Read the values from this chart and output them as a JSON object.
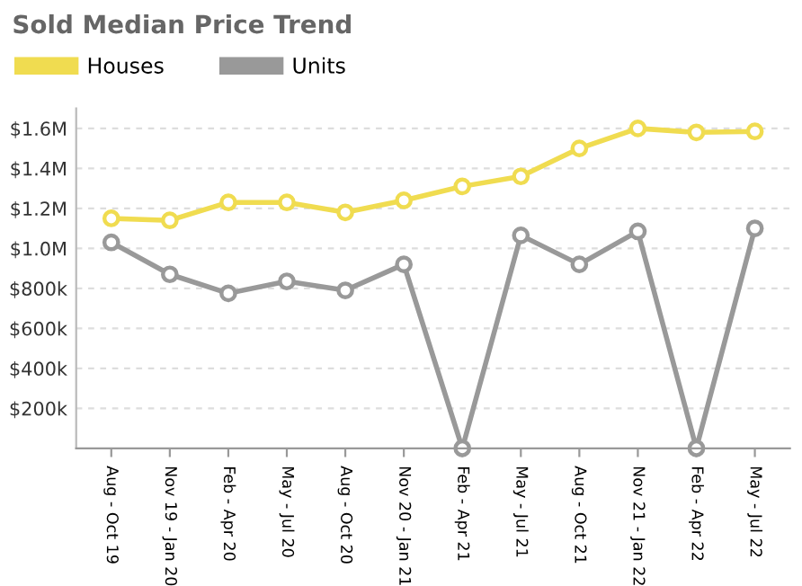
{
  "chart_data": {
    "type": "line",
    "title": "Sold Median Price Trend",
    "categories": [
      "Aug - Oct 19",
      "Nov 19 - Jan 20",
      "Feb - Apr 20",
      "May - Jul 20",
      "Aug - Oct 20",
      "Nov 20 - Jan 21",
      "Feb - Apr 21",
      "May - Jul 21",
      "Aug - Oct 21",
      "Nov 21 - Jan 22",
      "Feb - Apr 22",
      "May - Jul 22"
    ],
    "series": [
      {
        "name": "Houses",
        "color": "#f0dc50",
        "values": [
          1150000,
          1140000,
          1230000,
          1230000,
          1180000,
          1240000,
          1310000,
          1360000,
          1500000,
          1600000,
          1580000,
          1585000
        ]
      },
      {
        "name": "Units",
        "color": "#999999",
        "values": [
          1030000,
          870000,
          775000,
          835000,
          790000,
          920000,
          0,
          1065000,
          920000,
          1085000,
          0,
          1100000
        ]
      }
    ],
    "ylim": [
      0,
      1700000
    ],
    "yticks": [
      {
        "value": 200000,
        "label": "$200k"
      },
      {
        "value": 400000,
        "label": "$400k"
      },
      {
        "value": 600000,
        "label": "$600k"
      },
      {
        "value": 800000,
        "label": "$800k"
      },
      {
        "value": 1000000,
        "label": "$1.0M"
      },
      {
        "value": 1200000,
        "label": "$1.2M"
      },
      {
        "value": 1400000,
        "label": "$1.4M"
      },
      {
        "value": 1600000,
        "label": "$1.6M"
      }
    ],
    "grid": "y",
    "legend": "top left",
    "marker": "circle",
    "line_style": "solid"
  }
}
